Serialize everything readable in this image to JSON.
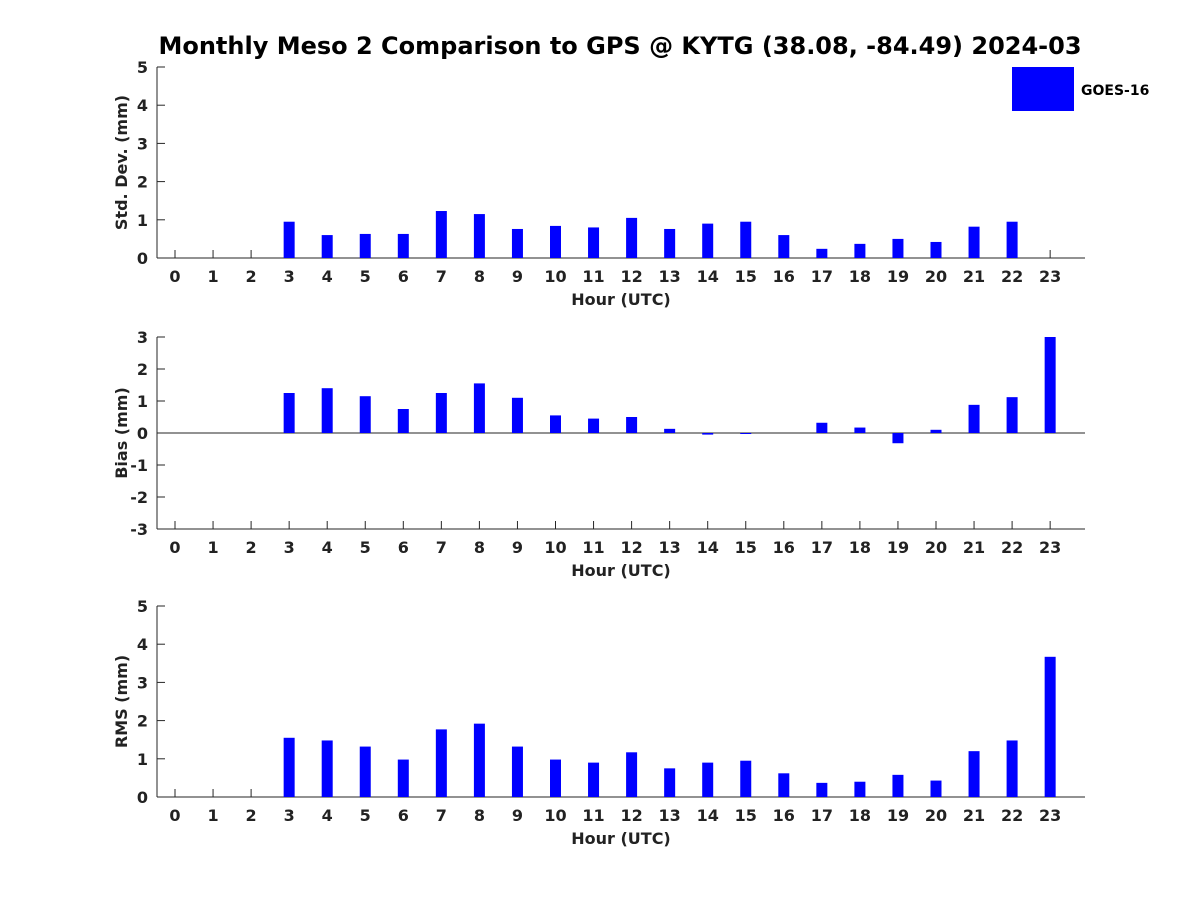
{
  "title": "Monthly Meso 2 Comparison to GPS @ KYTG (38.08, -84.49) 2024-03",
  "legend": {
    "label": "GOES-16",
    "color": "#0000ff"
  },
  "chart_data": [
    {
      "type": "bar",
      "title": "",
      "xlabel": "Hour (UTC)",
      "ylabel": "Std. Dev. (mm)",
      "ylim": [
        0,
        5
      ],
      "yticks": [
        0,
        1,
        2,
        3,
        4,
        5
      ],
      "categories": [
        "0",
        "1",
        "2",
        "3",
        "4",
        "5",
        "6",
        "7",
        "8",
        "9",
        "10",
        "11",
        "12",
        "13",
        "14",
        "15",
        "16",
        "17",
        "18",
        "19",
        "20",
        "21",
        "22",
        "23"
      ],
      "series": [
        {
          "name": "GOES-16",
          "values": [
            null,
            null,
            null,
            0.95,
            0.6,
            0.63,
            0.63,
            1.23,
            1.15,
            0.76,
            0.84,
            0.8,
            1.05,
            0.76,
            0.9,
            0.95,
            0.6,
            0.24,
            0.37,
            0.5,
            0.42,
            0.82,
            0.95,
            null
          ]
        }
      ],
      "grid": false,
      "legend_position": "top-right"
    },
    {
      "type": "bar",
      "title": "",
      "xlabel": "Hour (UTC)",
      "ylabel": "Bias (mm)",
      "ylim": [
        -3,
        3
      ],
      "yticks": [
        -3,
        -2,
        -1,
        0,
        1,
        2,
        3
      ],
      "categories": [
        "0",
        "1",
        "2",
        "3",
        "4",
        "5",
        "6",
        "7",
        "8",
        "9",
        "10",
        "11",
        "12",
        "13",
        "14",
        "15",
        "16",
        "17",
        "18",
        "19",
        "20",
        "21",
        "22",
        "23"
      ],
      "series": [
        {
          "name": "GOES-16",
          "values": [
            null,
            null,
            null,
            1.25,
            1.4,
            1.15,
            0.75,
            1.25,
            1.55,
            1.1,
            0.55,
            0.45,
            0.5,
            0.13,
            -0.05,
            -0.02,
            0,
            0.32,
            0.17,
            -0.32,
            0.1,
            0.88,
            1.12,
            3.0
          ]
        }
      ],
      "grid": false
    },
    {
      "type": "bar",
      "title": "",
      "xlabel": "Hour (UTC)",
      "ylabel": "RMS (mm)",
      "ylim": [
        0,
        5
      ],
      "yticks": [
        0,
        1,
        2,
        3,
        4,
        5
      ],
      "categories": [
        "0",
        "1",
        "2",
        "3",
        "4",
        "5",
        "6",
        "7",
        "8",
        "9",
        "10",
        "11",
        "12",
        "13",
        "14",
        "15",
        "16",
        "17",
        "18",
        "19",
        "20",
        "21",
        "22",
        "23"
      ],
      "series": [
        {
          "name": "GOES-16",
          "values": [
            null,
            null,
            null,
            1.55,
            1.48,
            1.32,
            0.98,
            1.77,
            1.92,
            1.32,
            0.98,
            0.9,
            1.17,
            0.75,
            0.9,
            0.95,
            0.62,
            0.37,
            0.4,
            0.58,
            0.43,
            1.2,
            1.48,
            3.67
          ]
        }
      ],
      "grid": false
    }
  ]
}
